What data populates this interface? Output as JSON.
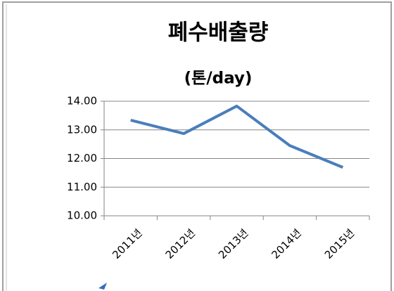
{
  "chart_data": {
    "type": "line",
    "title": "폐수배출량",
    "subtitle": "(톤/day)",
    "categories": [
      "2011년",
      "2012년",
      "2013년",
      "2014년",
      "2015년"
    ],
    "series": [
      {
        "name": "폐수배출량",
        "color": "#4a7ebb",
        "values": [
          13.34,
          12.87,
          13.83,
          12.45,
          11.69
        ]
      }
    ],
    "ylim": [
      10,
      14
    ],
    "yticks": [
      {
        "value": 10,
        "label": "10.00"
      },
      {
        "value": 11,
        "label": "11.00"
      },
      {
        "value": 12,
        "label": "12.00"
      },
      {
        "value": 13,
        "label": "13.00"
      },
      {
        "value": 14,
        "label": "14.00"
      }
    ],
    "grid": true
  }
}
